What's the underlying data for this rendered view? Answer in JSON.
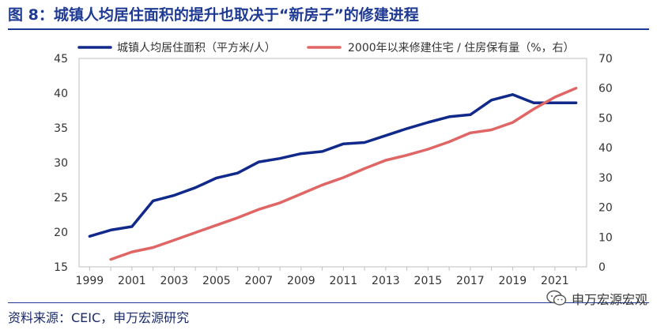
{
  "figure": {
    "title": "图 8：城镇人均居住面积的提升也取决于“新房子”的修建进程",
    "source": "资料来源：CEIC，申万宏源研究",
    "watermark": "申万宏源宏观"
  },
  "chart_data": {
    "type": "line",
    "x": [
      1999,
      2000,
      2001,
      2002,
      2003,
      2004,
      2005,
      2006,
      2007,
      2008,
      2009,
      2010,
      2011,
      2012,
      2013,
      2014,
      2015,
      2016,
      2017,
      2018,
      2019,
      2020,
      2021,
      2022
    ],
    "xticks": [
      1999,
      2001,
      2003,
      2005,
      2007,
      2009,
      2011,
      2013,
      2015,
      2017,
      2019,
      2021
    ],
    "series": [
      {
        "name": "城镇人均居住面积（平方米/人）",
        "axis": "left",
        "color": "#10298a",
        "values": [
          19.4,
          20.3,
          20.8,
          24.5,
          25.3,
          26.4,
          27.8,
          28.5,
          30.1,
          30.6,
          31.3,
          31.6,
          32.7,
          32.9,
          33.9,
          34.9,
          35.8,
          36.6,
          36.9,
          39.0,
          39.8,
          38.6,
          38.6,
          38.6
        ]
      },
      {
        "name": "2000年以来修建住宅 / 住房保有量（%，右）",
        "axis": "right",
        "color": "#e06666",
        "values": [
          null,
          2.5,
          5.0,
          6.5,
          9.0,
          11.5,
          14.0,
          16.5,
          19.3,
          21.5,
          24.5,
          27.5,
          30.0,
          33.0,
          35.8,
          37.5,
          39.5,
          42.0,
          45.0,
          46.0,
          48.5,
          53.0,
          57.0,
          60.0
        ]
      }
    ],
    "yleft": {
      "ylim": [
        15,
        45
      ],
      "ticks": [
        15,
        20,
        25,
        30,
        35,
        40,
        45
      ]
    },
    "yright": {
      "ylim": [
        0,
        70
      ],
      "ticks": [
        0,
        10,
        20,
        30,
        40,
        50,
        60,
        70
      ]
    },
    "grid": false,
    "legend": "top"
  }
}
